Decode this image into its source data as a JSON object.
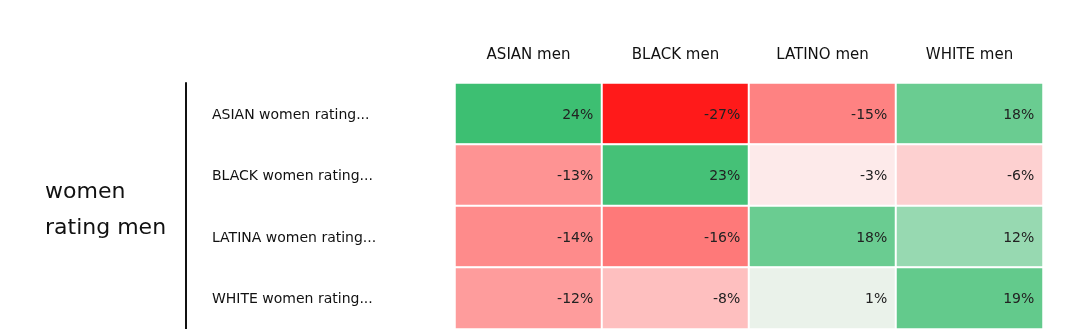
{
  "chart_data": {
    "type": "heatmap",
    "ylabel": "women rating men",
    "categories": [
      "ASIAN men",
      "BLACK men",
      "LATINO men",
      "WHITE men"
    ],
    "y_categories": [
      "ASIAN women rating...",
      "BLACK women rating...",
      "LATINA women rating...",
      "WHITE women rating..."
    ],
    "cells": [
      [
        24,
        -27,
        -15,
        18
      ],
      [
        -13,
        23,
        -3,
        -6
      ],
      [
        -14,
        -16,
        18,
        12
      ],
      [
        -12,
        -8,
        1,
        19
      ]
    ],
    "cell_labels": [
      [
        "24%",
        "-27%",
        "-15%",
        "18%"
      ],
      [
        "-13%",
        "23%",
        "-3%",
        "-6%"
      ],
      [
        "-14%",
        "-16%",
        "18%",
        "12%"
      ],
      [
        "-12%",
        "-8%",
        "1%",
        "19%"
      ]
    ],
    "colors": [
      "#ff1a1a",
      "#fdf7f7",
      "#3dbf72"
    ]
  }
}
